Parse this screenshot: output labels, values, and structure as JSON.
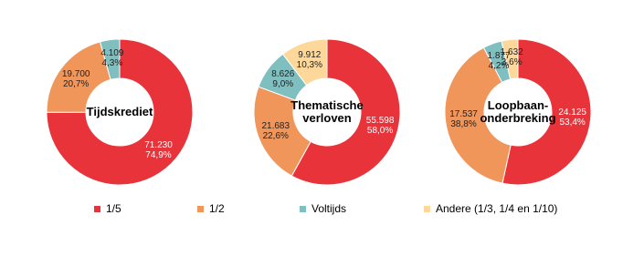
{
  "chart_data": [
    {
      "type": "donut",
      "title": "Tijdskrediet",
      "values": [
        71230,
        19700,
        4109
      ],
      "value_labels": [
        "71.230",
        "19.700",
        "4.109"
      ],
      "percents": [
        74.9,
        20.7,
        4.3
      ],
      "percent_labels": [
        "74,9%",
        "20,7%",
        "4,3%"
      ]
    },
    {
      "type": "donut",
      "title": "Thematische\nverloven",
      "values": [
        55598,
        21683,
        8626,
        9912
      ],
      "value_labels": [
        "55.598",
        "21.683",
        "8.626",
        "9.912"
      ],
      "percents": [
        58.0,
        22.6,
        9.0,
        10.3
      ],
      "percent_labels": [
        "58,0%",
        "22,6%",
        "9,0%",
        "10,3%"
      ]
    },
    {
      "type": "donut",
      "title": "Loopbaan-\nonderbreking",
      "values": [
        24125,
        17537,
        1877,
        1632
      ],
      "value_labels": [
        "24.125",
        "17.537",
        "1.877",
        "1.632"
      ],
      "percents": [
        53.4,
        38.8,
        4.2,
        3.6
      ],
      "percent_labels": [
        "53,4%",
        "38,8%",
        "4,2%",
        "3,6%"
      ]
    }
  ],
  "legend": {
    "items": [
      "1/5",
      "1/2",
      "Voltijds",
      "Andere (1/3, 1/4 en 1/10)"
    ],
    "colors": [
      "#e8333a",
      "#f0965a",
      "#7fbfbf",
      "#fdd89a"
    ]
  }
}
